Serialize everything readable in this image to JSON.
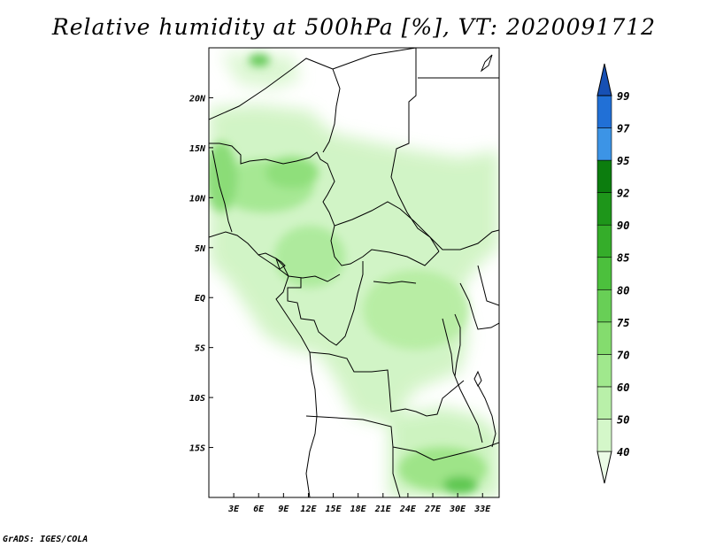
{
  "title": "Relative humidity at 500hPa [%], VT: 2020091712",
  "footer": "GrADS: IGES/COLA",
  "map": {
    "lon_range": [
      0,
      35
    ],
    "lat_range": [
      -20,
      25
    ],
    "lat_labels": [
      "20N",
      "15N",
      "10N",
      "5N",
      "EQ",
      "5S",
      "10S",
      "15S"
    ],
    "lon_labels": [
      "3E",
      "6E",
      "9E",
      "12E",
      "15E",
      "18E",
      "21E",
      "24E",
      "27E",
      "30E",
      "33E"
    ]
  },
  "colorbar": {
    "labels": [
      "40",
      "50",
      "60",
      "70",
      "75",
      "80",
      "85",
      "90",
      "92",
      "95",
      "97",
      "99"
    ],
    "colors": [
      "#ebfbe6",
      "#d4f7c9",
      "#b9f0a9",
      "#a0e88d",
      "#84dc6e",
      "#68cf56",
      "#4cc03d",
      "#35ad2a",
      "#1e961a",
      "#0c7d0e",
      "#3c94e6",
      "#2170d6",
      "#1750b4"
    ]
  }
}
